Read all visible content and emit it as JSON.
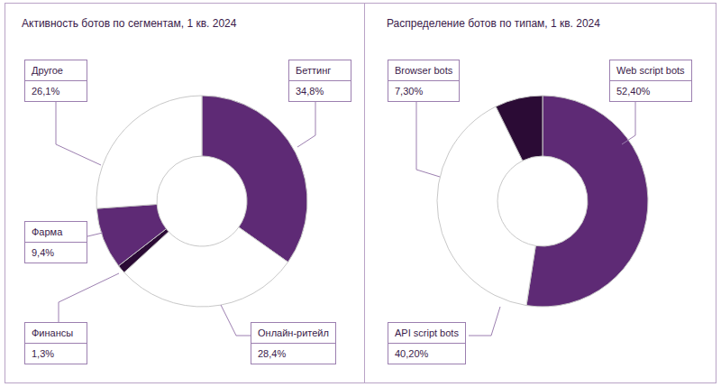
{
  "chart_data": [
    {
      "type": "pie",
      "title": "Активность ботов по сегментам, 1 кв. 2024",
      "categories": [
        "Беттинг",
        "Онлайн-ритейл",
        "Финансы",
        "Фарма",
        "Другое"
      ],
      "values": [
        34.8,
        28.4,
        1.3,
        9.4,
        26.1
      ],
      "value_labels": [
        "34,8%",
        "28,4%",
        "1,3%",
        "9,4%",
        "26,1%"
      ],
      "colors": [
        "#5e2a75",
        "#ffffff",
        "#2b0b35",
        "#5e2a75",
        "#ffffff"
      ],
      "data_labels": true
    },
    {
      "type": "pie",
      "title": "Распределение ботов по типам, 1 кв. 2024",
      "categories": [
        "Web script bots",
        "API script bots",
        "Browser bots"
      ],
      "values": [
        52.4,
        40.2,
        7.3
      ],
      "value_labels": [
        "52,40%",
        "40,20%",
        "7,30%"
      ],
      "colors": [
        "#5e2a75",
        "#ffffff",
        "#2b0b35"
      ],
      "data_labels": true
    }
  ]
}
